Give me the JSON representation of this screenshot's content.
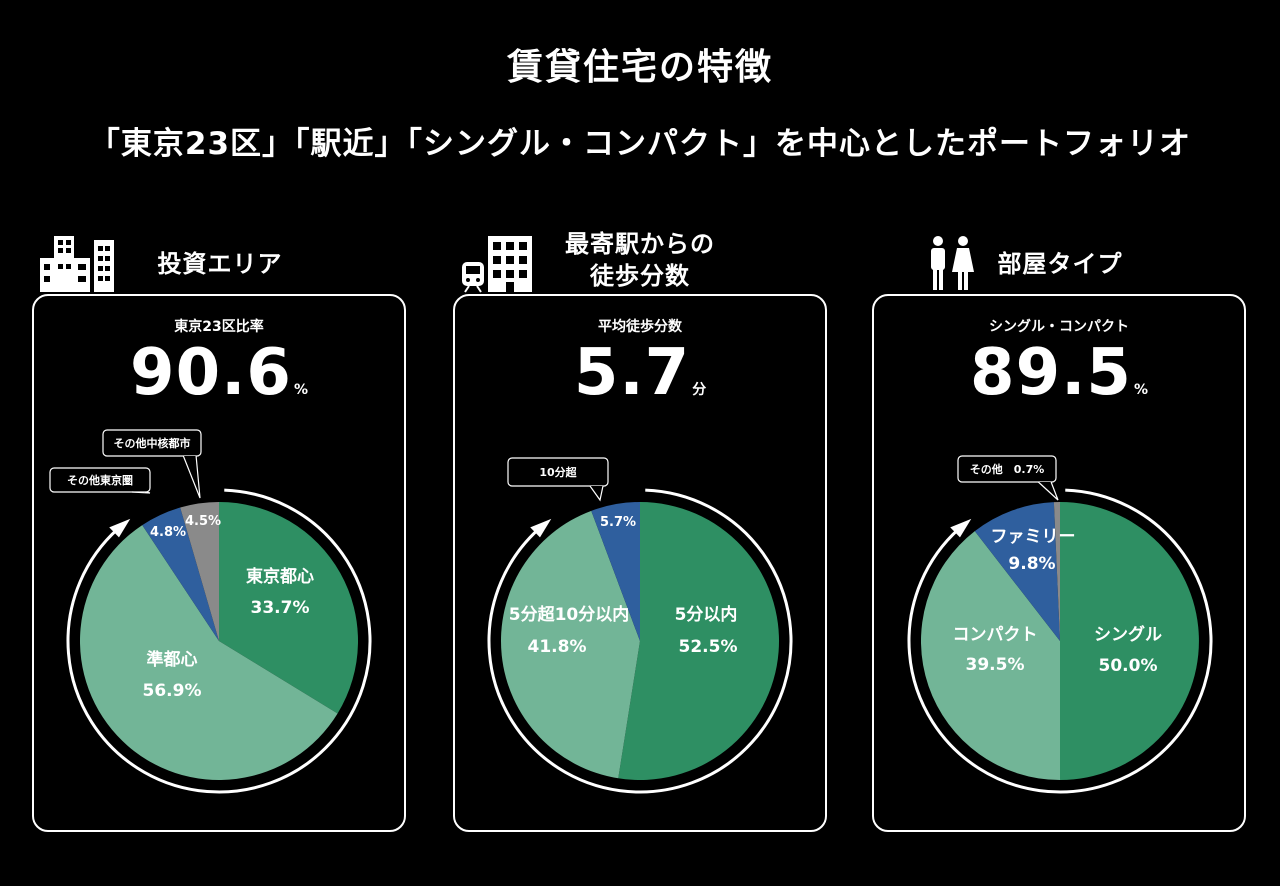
{
  "title": "賃貸住宅の特徴",
  "subtitle": "「東京23区」「駅近」「シングル・コンパクト」を中心としたポートフォリオ",
  "colors": {
    "dark_green": "#2e8f63",
    "light_green": "#72b597",
    "blue": "#2f5f9e",
    "gray": "#8a8a8a"
  },
  "sections": [
    {
      "heading": "投資エリア",
      "icon": "buildings-icon",
      "metric_label": "東京23区比率",
      "metric_value": "90.6",
      "metric_unit": "%"
    },
    {
      "heading_line1": "最寄駅からの",
      "heading_line2": "徒歩分数",
      "icon": "train-station-icon",
      "metric_label": "平均徒歩分数",
      "metric_value": "5.7",
      "metric_unit": "分"
    },
    {
      "heading": "部屋タイプ",
      "icon": "people-icon",
      "metric_label": "シングル・コンパクト",
      "metric_value": "89.5",
      "metric_unit": "%"
    }
  ],
  "chart_data": [
    {
      "type": "pie",
      "categories": [
        "東京都心",
        "準都心",
        "その他東京圏",
        "その他中核都市"
      ],
      "values": [
        33.7,
        56.9,
        4.8,
        4.5
      ],
      "labels": [
        "33.7%",
        "56.9%",
        "4.8%",
        "4.5%"
      ]
    },
    {
      "type": "pie",
      "categories": [
        "5分以内",
        "5分超10分以内",
        "10分超"
      ],
      "values": [
        52.5,
        41.8,
        5.7
      ],
      "labels": [
        "52.5%",
        "41.8%",
        "5.7%"
      ]
    },
    {
      "type": "pie",
      "categories": [
        "シングル",
        "コンパクト",
        "ファミリー",
        "その他"
      ],
      "values": [
        50.0,
        39.5,
        9.8,
        0.7
      ],
      "labels": [
        "50.0%",
        "39.5%",
        "9.8%",
        "0.7%"
      ]
    }
  ]
}
